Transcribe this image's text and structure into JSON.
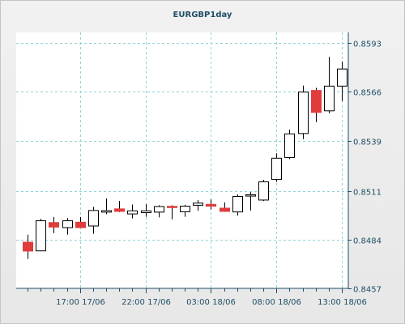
{
  "chart_data": {
    "type": "candlestick",
    "title": "EURGBP1day",
    "y_ticks": [
      0.8457,
      0.8484,
      0.8511,
      0.8539,
      0.8566,
      0.8593
    ],
    "ylim": [
      0.8457,
      0.8599
    ],
    "x_ticks": [
      "17:00 17/06",
      "22:00 17/06",
      "03:00 18/06",
      "08:00 18/06",
      "13:00 18/06"
    ],
    "grid": true,
    "colors": {
      "up_fill": "#ffffff",
      "down_fill": "#e03c3c",
      "candle_stroke": "#000000",
      "grid": "#8fd4d4",
      "axis": "#1f4e66"
    },
    "candles": [
      {
        "o": 0.84826,
        "h": 0.84868,
        "l": 0.84733,
        "c": 0.84777
      },
      {
        "o": 0.84778,
        "h": 0.84956,
        "l": 0.84776,
        "c": 0.84945
      },
      {
        "o": 0.84935,
        "h": 0.84966,
        "l": 0.84876,
        "c": 0.8491
      },
      {
        "o": 0.84907,
        "h": 0.8496,
        "l": 0.84868,
        "c": 0.84945
      },
      {
        "o": 0.84937,
        "h": 0.84966,
        "l": 0.84904,
        "c": 0.84907
      },
      {
        "o": 0.84916,
        "h": 0.85022,
        "l": 0.84873,
        "c": 0.85002
      },
      {
        "o": 0.84993,
        "h": 0.85069,
        "l": 0.84981,
        "c": 0.85001
      },
      {
        "o": 0.85011,
        "h": 0.85055,
        "l": 0.84993,
        "c": 0.84997
      },
      {
        "o": 0.84983,
        "h": 0.85035,
        "l": 0.84958,
        "c": 0.85
      },
      {
        "o": 0.8499,
        "h": 0.85037,
        "l": 0.84967,
        "c": 0.85
      },
      {
        "o": 0.84993,
        "h": 0.85031,
        "l": 0.84964,
        "c": 0.85024
      },
      {
        "o": 0.85025,
        "h": 0.85031,
        "l": 0.84953,
        "c": 0.85018
      },
      {
        "o": 0.84995,
        "h": 0.85034,
        "l": 0.84967,
        "c": 0.85026
      },
      {
        "o": 0.85031,
        "h": 0.8506,
        "l": 0.85,
        "c": 0.85043
      },
      {
        "o": 0.85036,
        "h": 0.85063,
        "l": 0.85007,
        "c": 0.85026
      },
      {
        "o": 0.85015,
        "h": 0.85047,
        "l": 0.84994,
        "c": 0.84997
      },
      {
        "o": 0.84994,
        "h": 0.85091,
        "l": 0.84974,
        "c": 0.8508
      },
      {
        "o": 0.85082,
        "h": 0.85104,
        "l": 0.85002,
        "c": 0.85089
      },
      {
        "o": 0.8506,
        "h": 0.85172,
        "l": 0.85054,
        "c": 0.85161
      },
      {
        "o": 0.85174,
        "h": 0.85319,
        "l": 0.85161,
        "c": 0.85292
      },
      {
        "o": 0.85296,
        "h": 0.85451,
        "l": 0.85287,
        "c": 0.85427
      },
      {
        "o": 0.85429,
        "h": 0.85695,
        "l": 0.85398,
        "c": 0.85659
      },
      {
        "o": 0.85668,
        "h": 0.85683,
        "l": 0.85492,
        "c": 0.85546
      },
      {
        "o": 0.85555,
        "h": 0.85854,
        "l": 0.85541,
        "c": 0.85692
      },
      {
        "o": 0.85692,
        "h": 0.85829,
        "l": 0.85609,
        "c": 0.85787
      }
    ]
  }
}
